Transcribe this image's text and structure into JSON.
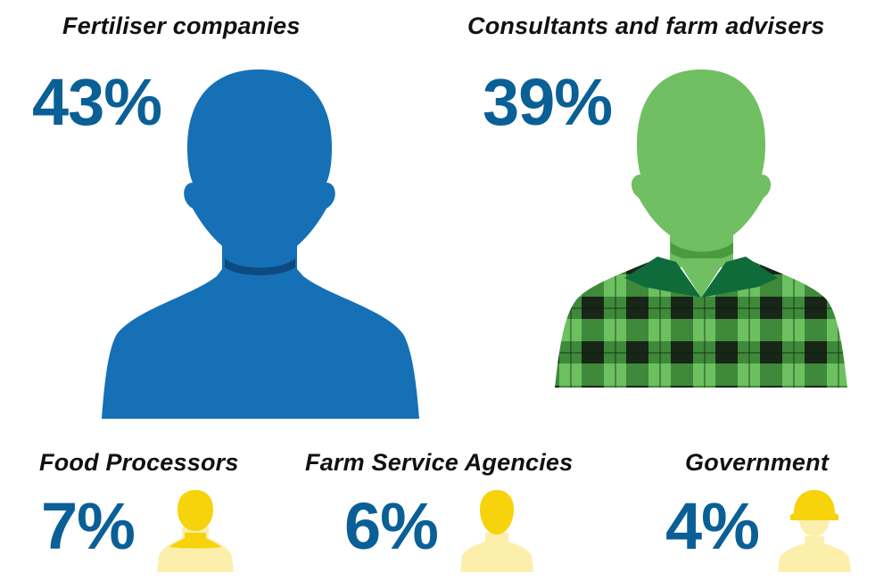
{
  "chart_data": {
    "type": "pictograph",
    "categories": [
      "Fertiliser companies",
      "Consultants and farm advisers",
      "Food Processors",
      "Farm Service Agencies",
      "Government"
    ],
    "values": [
      43,
      39,
      7,
      6,
      4
    ],
    "value_labels": [
      "43%",
      "39%",
      "7%",
      "6%",
      "4%"
    ],
    "unit": "%",
    "colors": {
      "percent_text": "#0a5f96",
      "fertiliser": "#1570b6",
      "consultant_skin": "#70bf62",
      "consultant_collar": "#0f6b3a",
      "check_green": "#6cc060",
      "check_dark": "#172617",
      "small_figure_head": "#f6d30a",
      "small_figure_body": "#fcefac"
    },
    "icons": {
      "fertiliser": "person-silhouette-icon",
      "consultant": "farmer-plaid-shirt-icon",
      "food": "person-small-icon",
      "agency": "person-small-icon",
      "government": "hard-hat-worker-icon"
    }
  }
}
